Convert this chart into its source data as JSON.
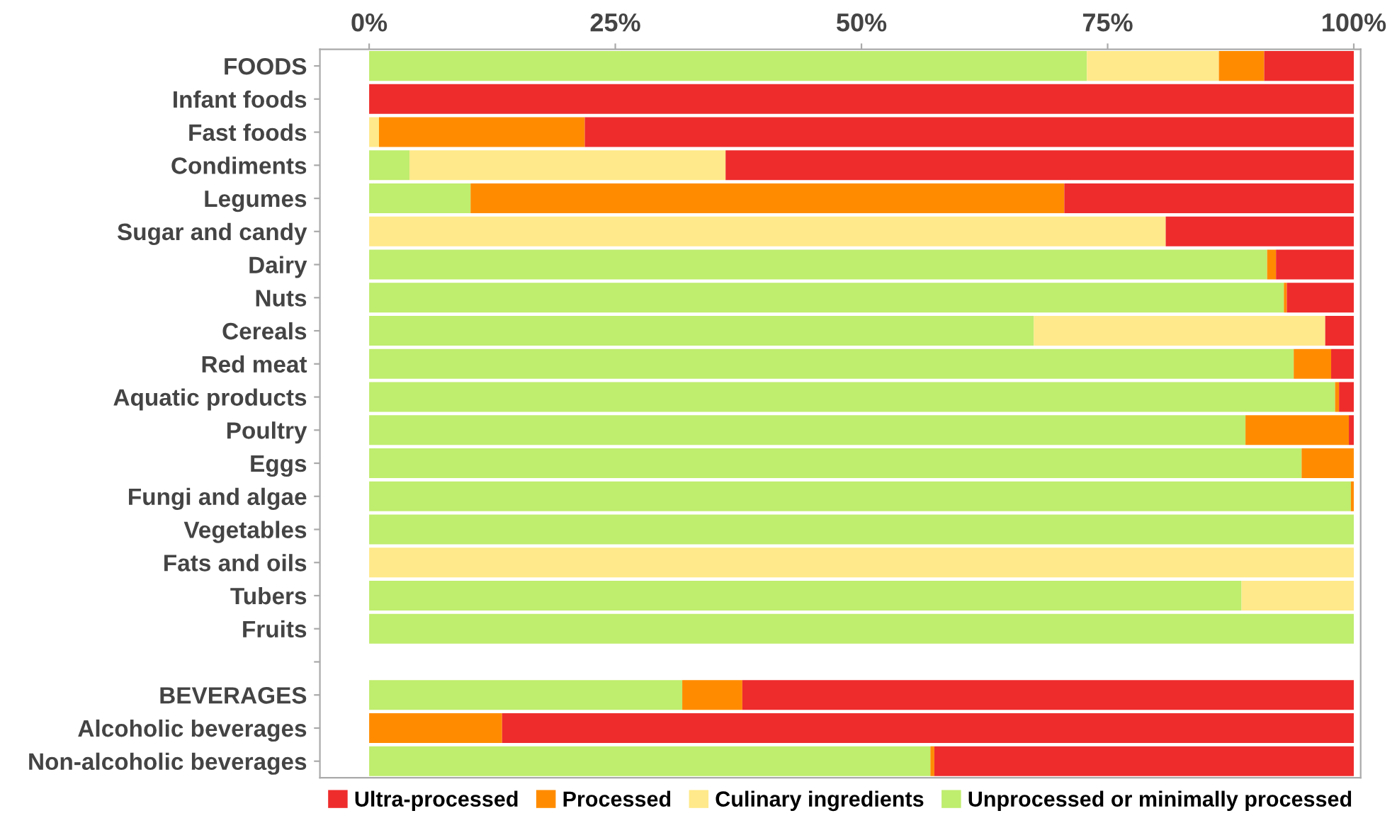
{
  "chart_data": {
    "type": "bar",
    "orientation": "horizontal",
    "stacked": true,
    "categories": [
      "FOODS",
      "Infant foods",
      "Fast foods",
      "Condiments",
      "Legumes",
      "Sugar and candy",
      "Dairy",
      "Nuts",
      "Cereals",
      "Red meat",
      "Aquatic products",
      "Poultry",
      "Eggs",
      "Fungi and algae",
      "Vegetables",
      "Fats and oils",
      "Tubers",
      "Fruits",
      null,
      "BEVERAGES",
      "Alcoholic beverages",
      "Non-alcoholic beverages"
    ],
    "series": [
      {
        "name": "Unprocessed or minimally processed",
        "color": "#bfed6e",
        "values": [
          72.9,
          0,
          0,
          4.1,
          10.3,
          0,
          91.2,
          92.9,
          67.5,
          93.9,
          98.1,
          89.0,
          94.7,
          99.7,
          100,
          0,
          88.6,
          100,
          null,
          31.8,
          0,
          57.0
        ]
      },
      {
        "name": "Culinary ingredients",
        "color": "#ffe98a",
        "values": [
          13.4,
          0,
          1.0,
          32.1,
          0,
          80.9,
          0,
          0,
          29.6,
          0,
          0,
          0,
          0,
          0,
          0,
          100,
          11.4,
          0,
          null,
          0,
          0,
          0
        ]
      },
      {
        "name": "Processed",
        "color": "#ff8c00",
        "values": [
          4.6,
          0,
          20.9,
          0,
          60.3,
          0,
          0.9,
          0.3,
          0,
          3.8,
          0.4,
          10.5,
          5.3,
          0.3,
          0,
          0,
          0,
          0,
          null,
          6.1,
          13.5,
          0.4
        ]
      },
      {
        "name": "Ultra-processed",
        "color": "#ee2c2c",
        "values": [
          9.1,
          100,
          78.1,
          63.8,
          29.4,
          19.1,
          7.9,
          6.8,
          2.9,
          2.3,
          1.5,
          0.5,
          0,
          0,
          0,
          0,
          0,
          0,
          null,
          62.1,
          86.5,
          42.6
        ]
      }
    ],
    "xlim": [
      -5,
      100.7
    ],
    "xticks": [
      {
        "value": 0,
        "label": "0%"
      },
      {
        "value": 25,
        "label": "25%"
      },
      {
        "value": 50,
        "label": "50%"
      },
      {
        "value": 75,
        "label": "75%"
      },
      {
        "value": 100,
        "label": "100%"
      }
    ],
    "legend": "bottom",
    "grid": false
  }
}
